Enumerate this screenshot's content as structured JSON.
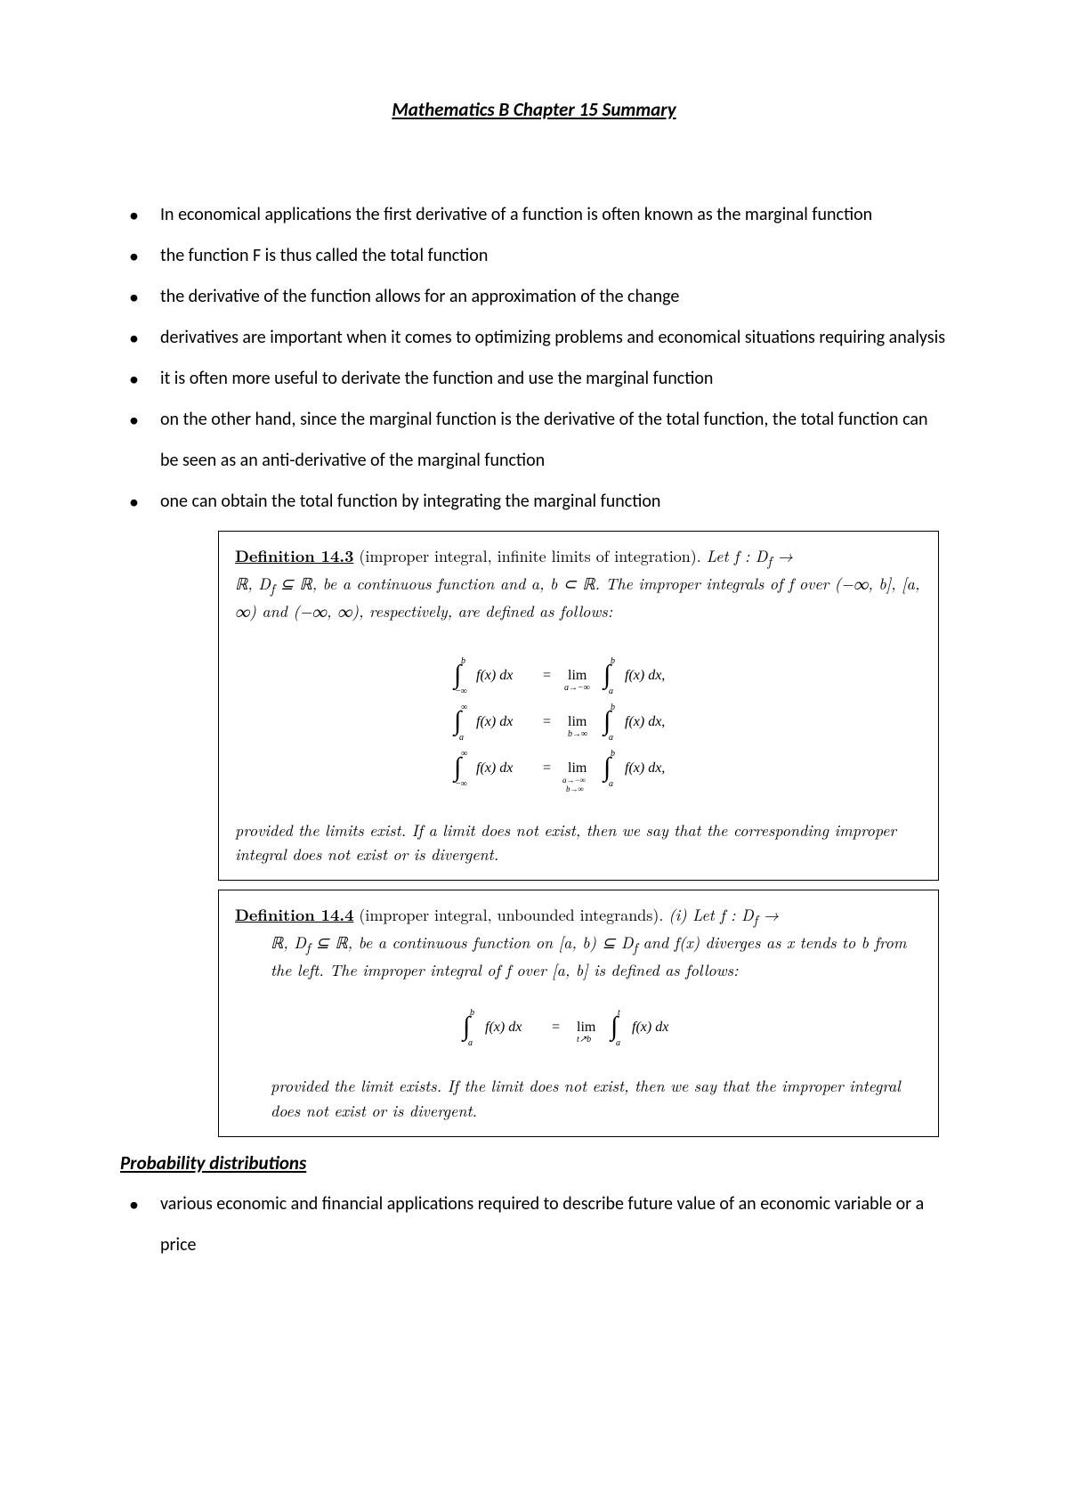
{
  "title": "Mathematics B Chapter 15 Summary",
  "bullets": [
    "In economical applications the first derivative of a function is often known as the marginal function",
    "the function F is thus called the total function",
    "the derivative of the function allows for an approximation of the change",
    "derivatives are important when it comes to optimizing problems and economical situations requiring analysis",
    "it is often more useful to derivate the function and use the marginal function",
    "on the other hand, since the marginal function is the derivative of the total function, the total function can be seen as an anti-derivative of the marginal function",
    "one can obtain the total function by integrating the marginal function"
  ],
  "def143": {
    "lead": "Definition 14.3",
    "paren": " (improper integral, infinite limits of integration). ",
    "tail1": "Let f : D",
    "tail_sub": "f",
    "tail2": " →",
    "line2a": "ℝ, D",
    "line2b": " ⊆ ℝ, be a continuous function and a, b ⊂ ℝ.  The ",
    "line2c": "improper integrals of f over (−∞, b], [a, ∞) and (−∞, ∞), respectively, are defined as follows:",
    "foot": "provided the limits exist. If a limit does not exist, then we say that the corresponding improper integral does not exist or is divergent."
  },
  "def144": {
    "lead": "Definition 14.4",
    "paren": " (improper integral, unbounded integrands).    ",
    "i": "(i)  Let f : D",
    "i_sub": "f",
    "i_tail": " →",
    "body1a": "ℝ, D",
    "body1b": " ⊆ ℝ, be a continuous function on [a, b) ⊆ D",
    "body1c": " and f(x) diverges as x tends to b from the left. The ",
    "body1d": "improper integral of f over [a, b] is defined as follows:",
    "foot": "provided the limit exists.  If the limit does not exist, then we say that the improper integral does not exist or is divergent."
  },
  "section2": "Probability distributions",
  "bullets2": [
    "various economic and financial applications required to describe future value of an economic variable or a price"
  ],
  "colors": {
    "text": "#000000",
    "bg": "#ffffff",
    "border": "#000000"
  }
}
